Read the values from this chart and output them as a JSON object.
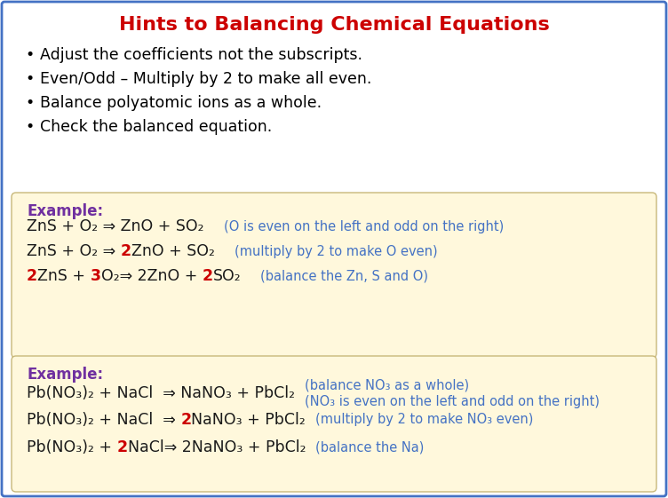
{
  "title": "Hints to Balancing Chemical Equations",
  "title_color": "#CC0000",
  "title_fontsize": 16,
  "background_color": "#FFFFFF",
  "border_color": "#4472C4",
  "bullet_color": "#000000",
  "bullet_fontsize": 12.5,
  "bullets": [
    "Adjust the coefficients not the subscripts.",
    "Even/Odd – Multiply by 2 to make all even.",
    "Balance polyatomic ions as a whole.",
    "Check the balanced equation."
  ],
  "example_box_color": "#FFF8DC",
  "example_box_border": "#C8B87A",
  "example_label_color": "#7030A0",
  "example_label_fontsize": 12,
  "eq_fontsize": 12.5,
  "comment_color": "#4472C4",
  "comment_fontsize": 10.5,
  "red_color": "#CC0000",
  "black_color": "#1A1A1A"
}
